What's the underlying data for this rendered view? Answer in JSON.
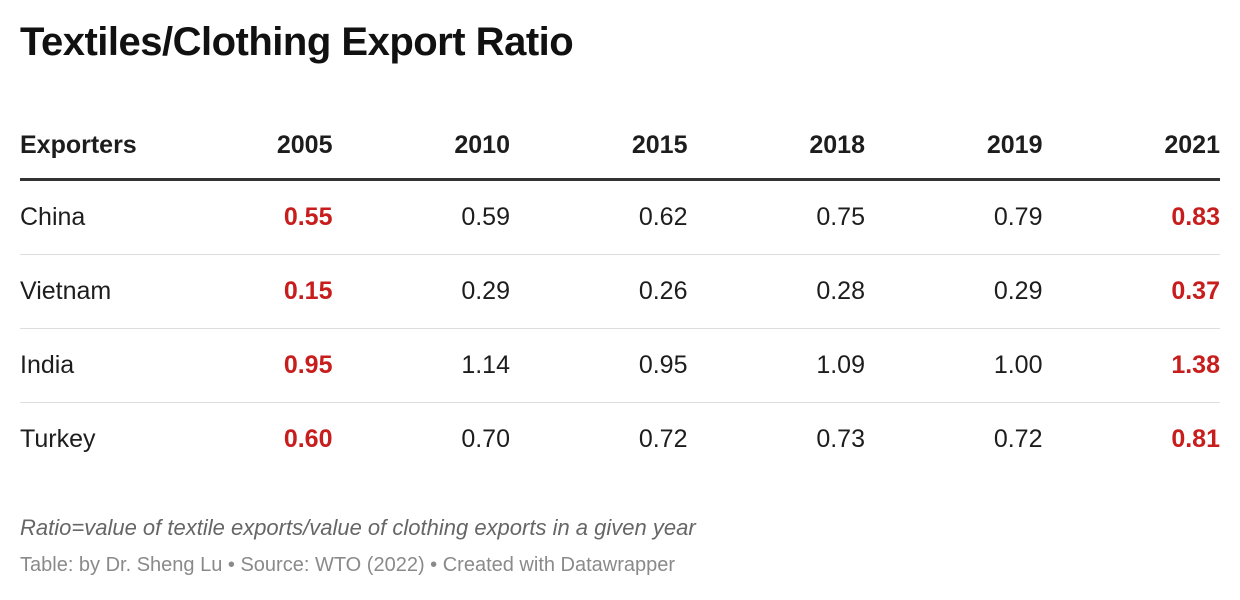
{
  "title": "Textiles/Clothing Export Ratio",
  "note": "Ratio=value of textile exports/value of clothing exports in a given year",
  "footer": "Table: by Dr. Sheng Lu • Source: WTO (2022) • Created with Datawrapper",
  "colors": {
    "highlight": "#c71e1d",
    "text": "#1d1d1d"
  },
  "chart_data": {
    "type": "table",
    "title": "Textiles/Clothing Export Ratio",
    "columns": [
      "Exporters",
      "2005",
      "2010",
      "2015",
      "2018",
      "2019",
      "2021"
    ],
    "highlighted_columns": [
      "2005",
      "2021"
    ],
    "rows": [
      {
        "exporter": "China",
        "values": [
          "0.55",
          "0.59",
          "0.62",
          "0.75",
          "0.79",
          "0.83"
        ]
      },
      {
        "exporter": "Vietnam",
        "values": [
          "0.15",
          "0.29",
          "0.26",
          "0.28",
          "0.29",
          "0.37"
        ]
      },
      {
        "exporter": "India",
        "values": [
          "0.95",
          "1.14",
          "0.95",
          "1.09",
          "1.00",
          "1.38"
        ]
      },
      {
        "exporter": "Turkey",
        "values": [
          "0.60",
          "0.70",
          "0.72",
          "0.73",
          "0.72",
          "0.81"
        ]
      }
    ]
  }
}
